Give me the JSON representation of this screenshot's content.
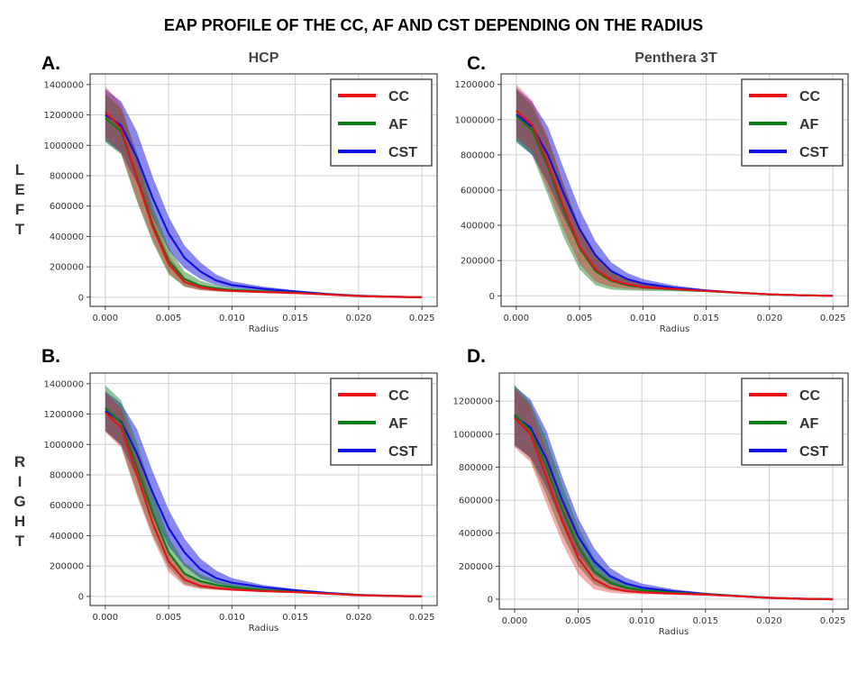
{
  "figure": {
    "title": "EAP PROFILE OF THE CC, AF AND CST DEPENDING ON THE RADIUS",
    "column_titles": [
      "HCP",
      "Penthera 3T"
    ],
    "row_labels": [
      "LEFT",
      "RIGHT"
    ],
    "colors": {
      "CC": "#e8111b",
      "AF": "#0d7d1a",
      "CST": "#1212e0",
      "grid": "#cfcfcf",
      "axis": "#333333"
    }
  },
  "chart_data": [
    {
      "panel": "A.",
      "type": "line",
      "title": "HCP",
      "row": "LEFT",
      "xlabel": "Radius",
      "ylabel": "",
      "xlim": [
        -0.0012,
        0.0262
      ],
      "ylim": [
        -60000,
        1470000
      ],
      "xticks": [
        "0.000",
        "0.005",
        "0.010",
        "0.015",
        "0.020",
        "0.025"
      ],
      "xtick_values": [
        0,
        0.005,
        0.01,
        0.015,
        0.02,
        0.025
      ],
      "yticks": [
        "0",
        "200000",
        "400000",
        "600000",
        "800000",
        "1000000",
        "1200000",
        "1400000"
      ],
      "ytick_values": [
        0,
        200000,
        400000,
        600000,
        800000,
        1000000,
        1200000,
        1400000
      ],
      "grid": true,
      "legend": {
        "position": "top-right",
        "entries": [
          "CC",
          "AF",
          "CST"
        ]
      },
      "x": [
        0,
        0.00125,
        0.0025,
        0.00375,
        0.005,
        0.00625,
        0.0075,
        0.00875,
        0.01,
        0.0125,
        0.015,
        0.0175,
        0.02,
        0.0225,
        0.025
      ],
      "series": [
        {
          "name": "CC",
          "values": [
            1220000,
            1110000,
            780000,
            460000,
            220000,
            100000,
            65000,
            50000,
            42000,
            34000,
            28000,
            18000,
            8000,
            3000,
            0
          ],
          "lower": [
            1050000,
            950000,
            640000,
            370000,
            160000,
            70000,
            45000,
            38000,
            33000,
            28000,
            24000,
            15000,
            6000,
            2000,
            0
          ],
          "upper": [
            1390000,
            1270000,
            920000,
            550000,
            280000,
            130000,
            85000,
            62000,
            51000,
            40000,
            32000,
            21000,
            10000,
            4000,
            0
          ]
        },
        {
          "name": "AF",
          "values": [
            1180000,
            1090000,
            790000,
            480000,
            240000,
            120000,
            75000,
            58000,
            48000,
            38000,
            30000,
            19000,
            9000,
            3000,
            0
          ],
          "lower": [
            1020000,
            940000,
            630000,
            360000,
            150000,
            70000,
            48000,
            40000,
            35000,
            29000,
            25000,
            16000,
            7000,
            2000,
            0
          ],
          "upper": [
            1340000,
            1240000,
            950000,
            600000,
            330000,
            170000,
            110000,
            80000,
            62000,
            47000,
            35000,
            22000,
            11000,
            4000,
            0
          ]
        },
        {
          "name": "CST",
          "values": [
            1200000,
            1130000,
            920000,
            650000,
            420000,
            260000,
            170000,
            110000,
            80000,
            55000,
            38000,
            22000,
            10000,
            4000,
            0
          ],
          "lower": [
            1030000,
            950000,
            750000,
            520000,
            310000,
            190000,
            120000,
            80000,
            60000,
            42000,
            30000,
            18000,
            8000,
            3000,
            0
          ],
          "upper": [
            1370000,
            1290000,
            1090000,
            790000,
            530000,
            340000,
            230000,
            150000,
            105000,
            70000,
            46000,
            26000,
            12000,
            5000,
            0
          ]
        }
      ]
    },
    {
      "panel": "C.",
      "type": "line",
      "title": "Penthera 3T",
      "row": "LEFT",
      "xlabel": "Radius",
      "ylabel": "",
      "xlim": [
        -0.0012,
        0.0262
      ],
      "ylim": [
        -60000,
        1260000
      ],
      "xticks": [
        "0.000",
        "0.005",
        "0.010",
        "0.015",
        "0.020",
        "0.025"
      ],
      "xtick_values": [
        0,
        0.005,
        0.01,
        0.015,
        0.02,
        0.025
      ],
      "yticks": [
        "0",
        "200000",
        "400000",
        "600000",
        "800000",
        "1000000",
        "1200000"
      ],
      "ytick_values": [
        0,
        200000,
        400000,
        600000,
        800000,
        1000000,
        1200000
      ],
      "grid": true,
      "legend": {
        "position": "top-right",
        "entries": [
          "CC",
          "AF",
          "CST"
        ]
      },
      "x": [
        0,
        0.00125,
        0.0025,
        0.00375,
        0.005,
        0.00625,
        0.0075,
        0.00875,
        0.01,
        0.0125,
        0.015,
        0.0175,
        0.02,
        0.0225,
        0.025
      ],
      "series": [
        {
          "name": "CC",
          "values": [
            1050000,
            970000,
            750000,
            500000,
            280000,
            150000,
            90000,
            65000,
            50000,
            38000,
            28000,
            18000,
            8000,
            3000,
            0
          ],
          "lower": [
            900000,
            820000,
            600000,
            370000,
            180000,
            80000,
            50000,
            40000,
            35000,
            30000,
            24000,
            15000,
            6000,
            2000,
            0
          ],
          "upper": [
            1200000,
            1110000,
            900000,
            630000,
            380000,
            220000,
            130000,
            90000,
            65000,
            46000,
            32000,
            21000,
            10000,
            4000,
            0
          ]
        },
        {
          "name": "AF",
          "values": [
            1020000,
            940000,
            730000,
            480000,
            270000,
            140000,
            85000,
            60000,
            48000,
            36000,
            27000,
            17000,
            8000,
            3000,
            0
          ],
          "lower": [
            870000,
            800000,
            570000,
            330000,
            150000,
            60000,
            35000,
            30000,
            28000,
            25000,
            22000,
            14000,
            6000,
            2000,
            0
          ],
          "upper": [
            1170000,
            1080000,
            890000,
            630000,
            390000,
            220000,
            135000,
            90000,
            68000,
            47000,
            32000,
            20000,
            10000,
            4000,
            0
          ]
        },
        {
          "name": "CST",
          "values": [
            1030000,
            960000,
            800000,
            580000,
            380000,
            230000,
            140000,
            95000,
            70000,
            45000,
            30000,
            18000,
            8000,
            3000,
            0
          ],
          "lower": [
            880000,
            800000,
            640000,
            440000,
            270000,
            150000,
            90000,
            60000,
            45000,
            32000,
            24000,
            15000,
            6000,
            2000,
            0
          ],
          "upper": [
            1180000,
            1100000,
            960000,
            720000,
            490000,
            310000,
            190000,
            130000,
            95000,
            58000,
            36000,
            21000,
            10000,
            4000,
            0
          ]
        }
      ]
    },
    {
      "panel": "B.",
      "type": "line",
      "title": "",
      "row": "RIGHT",
      "xlabel": "Radius",
      "ylabel": "",
      "xlim": [
        -0.0012,
        0.0262
      ],
      "ylim": [
        -60000,
        1470000
      ],
      "xticks": [
        "0.000",
        "0.005",
        "0.010",
        "0.015",
        "0.020",
        "0.025"
      ],
      "xtick_values": [
        0,
        0.005,
        0.01,
        0.015,
        0.02,
        0.025
      ],
      "yticks": [
        "0",
        "200000",
        "400000",
        "600000",
        "800000",
        "1000000",
        "1200000",
        "1400000"
      ],
      "ytick_values": [
        0,
        200000,
        400000,
        600000,
        800000,
        1000000,
        1200000,
        1400000
      ],
      "grid": true,
      "legend": {
        "position": "top-right",
        "entries": [
          "CC",
          "AF",
          "CST"
        ]
      },
      "x": [
        0,
        0.00125,
        0.0025,
        0.00375,
        0.005,
        0.00625,
        0.0075,
        0.00875,
        0.01,
        0.0125,
        0.015,
        0.0175,
        0.02,
        0.0225,
        0.025
      ],
      "series": [
        {
          "name": "CC",
          "values": [
            1210000,
            1110000,
            800000,
            480000,
            230000,
            110000,
            70000,
            55000,
            45000,
            35000,
            28000,
            18000,
            8000,
            3000,
            0
          ],
          "lower": [
            1080000,
            980000,
            660000,
            380000,
            160000,
            70000,
            50000,
            42000,
            36000,
            29000,
            24000,
            15000,
            6000,
            2000,
            0
          ],
          "upper": [
            1340000,
            1240000,
            940000,
            580000,
            300000,
            150000,
            95000,
            70000,
            55000,
            41000,
            32000,
            21000,
            10000,
            4000,
            0
          ]
        },
        {
          "name": "AF",
          "values": [
            1240000,
            1140000,
            850000,
            540000,
            290000,
            150000,
            100000,
            75000,
            60000,
            42000,
            30000,
            19000,
            9000,
            3000,
            0
          ],
          "lower": [
            1090000,
            990000,
            680000,
            400000,
            190000,
            80000,
            55000,
            45000,
            40000,
            32000,
            25000,
            16000,
            7000,
            2000,
            0
          ],
          "upper": [
            1390000,
            1290000,
            1010000,
            680000,
            390000,
            220000,
            145000,
            105000,
            80000,
            52000,
            35000,
            22000,
            11000,
            4000,
            0
          ]
        },
        {
          "name": "CST",
          "values": [
            1220000,
            1150000,
            940000,
            680000,
            450000,
            290000,
            180000,
            120000,
            90000,
            60000,
            40000,
            23000,
            10000,
            4000,
            0
          ],
          "lower": [
            1090000,
            1000000,
            780000,
            540000,
            330000,
            200000,
            120000,
            85000,
            65000,
            45000,
            32000,
            19000,
            8000,
            3000,
            0
          ],
          "upper": [
            1350000,
            1270000,
            1100000,
            820000,
            570000,
            380000,
            250000,
            170000,
            120000,
            75000,
            48000,
            27000,
            12000,
            5000,
            0
          ]
        }
      ]
    },
    {
      "panel": "D.",
      "type": "line",
      "title": "",
      "row": "RIGHT",
      "xlabel": "Radius",
      "ylabel": "",
      "xlim": [
        -0.0012,
        0.0262
      ],
      "ylim": [
        -60000,
        1370000
      ],
      "xticks": [
        "0.000",
        "0.005",
        "0.010",
        "0.015",
        "0.020",
        "0.025"
      ],
      "xtick_values": [
        0,
        0.005,
        0.01,
        0.015,
        0.02,
        0.025
      ],
      "yticks": [
        "0",
        "200000",
        "400000",
        "600000",
        "800000",
        "1000000",
        "1200000"
      ],
      "ytick_values": [
        0,
        200000,
        400000,
        600000,
        800000,
        1000000,
        1200000
      ],
      "grid": true,
      "legend": {
        "position": "top-right",
        "entries": [
          "CC",
          "AF",
          "CST"
        ]
      },
      "x": [
        0,
        0.00125,
        0.0025,
        0.00375,
        0.005,
        0.00625,
        0.0075,
        0.00875,
        0.01,
        0.0125,
        0.015,
        0.0175,
        0.02,
        0.0225,
        0.025
      ],
      "series": [
        {
          "name": "CC",
          "values": [
            1100000,
            1000000,
            740000,
            470000,
            250000,
            120000,
            70000,
            50000,
            42000,
            34000,
            28000,
            18000,
            8000,
            3000,
            0
          ],
          "lower": [
            920000,
            830000,
            580000,
            340000,
            150000,
            60000,
            40000,
            32000,
            30000,
            27000,
            23000,
            15000,
            6000,
            2000,
            0
          ],
          "upper": [
            1280000,
            1170000,
            900000,
            600000,
            350000,
            180000,
            110000,
            75000,
            58000,
            42000,
            32000,
            21000,
            10000,
            4000,
            0
          ]
        },
        {
          "name": "AF",
          "values": [
            1120000,
            1020000,
            800000,
            540000,
            320000,
            170000,
            100000,
            70000,
            55000,
            40000,
            30000,
            19000,
            9000,
            3000,
            0
          ],
          "lower": [
            940000,
            850000,
            630000,
            390000,
            200000,
            90000,
            55000,
            42000,
            36000,
            30000,
            25000,
            16000,
            7000,
            2000,
            0
          ],
          "upper": [
            1300000,
            1190000,
            970000,
            690000,
            440000,
            250000,
            150000,
            100000,
            75000,
            50000,
            35000,
            22000,
            11000,
            4000,
            0
          ]
        },
        {
          "name": "CST",
          "values": [
            1110000,
            1040000,
            850000,
            600000,
            380000,
            230000,
            140000,
            95000,
            70000,
            48000,
            32000,
            20000,
            9000,
            3000,
            0
          ],
          "lower": [
            930000,
            860000,
            680000,
            460000,
            270000,
            150000,
            90000,
            60000,
            48000,
            35000,
            26000,
            16000,
            7000,
            2000,
            0
          ],
          "upper": [
            1290000,
            1210000,
            1020000,
            740000,
            490000,
            310000,
            190000,
            130000,
            95000,
            60000,
            38000,
            23000,
            11000,
            4000,
            0
          ]
        }
      ]
    }
  ]
}
